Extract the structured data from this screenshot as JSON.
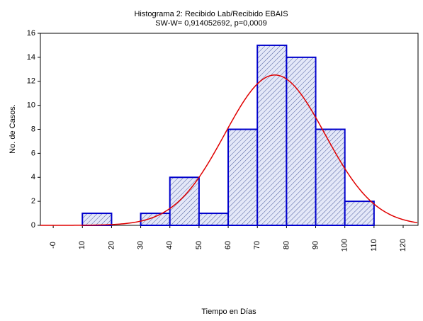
{
  "chart_data": {
    "type": "histogram",
    "title": "Histograma 2: Recibido Lab/Recibido EBAIS",
    "subtitle": "SW-W= 0,914052692, p=0,0009",
    "x_label": "Tiempo en Días",
    "y_label": "No. de Casos.",
    "bins": [
      0,
      10,
      20,
      30,
      40,
      50,
      60,
      70,
      80,
      90,
      100,
      110,
      120
    ],
    "counts": [
      0,
      1,
      0,
      1,
      4,
      1,
      8,
      15,
      14,
      8,
      2,
      0
    ],
    "color": "#0000cc",
    "fill": "#c8d0f0",
    "normal_fit": {
      "mean": 76,
      "sd": 17.2,
      "color": "#e00000"
    },
    "xlim": [
      -4.4,
      125.1
    ],
    "xticks": [
      {
        "value": 0,
        "label": "-0"
      },
      10,
      20,
      30,
      40,
      50,
      60,
      70,
      80,
      90,
      100,
      110,
      120
    ],
    "ylim": [
      0,
      16
    ],
    "yticks": [
      0,
      2,
      4,
      6,
      8,
      10,
      12,
      14,
      16
    ]
  }
}
